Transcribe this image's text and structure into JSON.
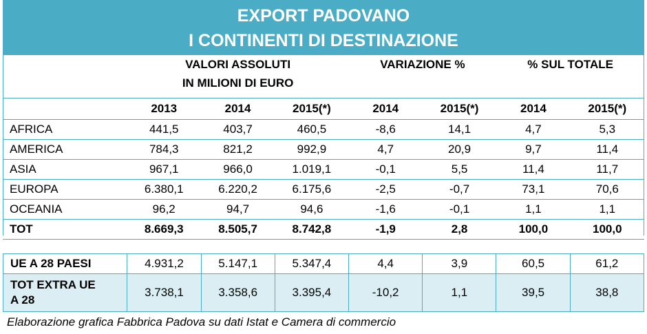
{
  "title": {
    "line1": "EXPORT PADOVANO",
    "line2": "I CONTINENTI DI DESTINAZIONE"
  },
  "groups": {
    "valori_line1": "VALORI ASSOLUTI",
    "valori_line2": "IN MILIONI DI EURO",
    "variazione": "VARIAZIONE %",
    "percentuale": "% SUL TOTALE"
  },
  "columns": [
    "2013",
    "2014",
    "2015(*)",
    "2014",
    "2015(*)",
    "2014",
    "2015(*)"
  ],
  "rows": [
    {
      "label": "AFRICA",
      "values": [
        "441,5",
        "403,7",
        "460,5",
        "-8,6",
        "14,1",
        "4,7",
        "5,3"
      ]
    },
    {
      "label": "AMERICA",
      "values": [
        "784,3",
        "821,2",
        "992,9",
        "4,7",
        "20,9",
        "9,7",
        "11,4"
      ]
    },
    {
      "label": "ASIA",
      "values": [
        "967,1",
        "966,0",
        "1.019,1",
        "-0,1",
        "5,5",
        "11,4",
        "11,7"
      ]
    },
    {
      "label": "EUROPA",
      "values": [
        "6.380,1",
        "6.220,2",
        "6.175,6",
        "-2,5",
        "-0,7",
        "73,1",
        "70,6"
      ]
    },
    {
      "label": "OCEANIA",
      "values": [
        "96,2",
        "94,7",
        "94,6",
        "-1,6",
        "-0,1",
        "1,1",
        "1,1"
      ]
    },
    {
      "label": "TOT",
      "values": [
        "8.669,3",
        "8.505,7",
        "8.742,8",
        "-1,9",
        "2,8",
        "100,0",
        "100,0"
      ]
    }
  ],
  "bottom_rows": [
    {
      "label": "UE A 28 PAESI",
      "values": [
        "4.931,2",
        "5.147,1",
        "5.347,4",
        "4,4",
        "3,9",
        "60,5",
        "61,2"
      ]
    },
    {
      "label_line1": "TOT EXTRA UE",
      "label_line2": "A 28",
      "values": [
        "3.738,1",
        "3.358,6",
        "3.395,4",
        "-10,2",
        "1,1",
        "39,5",
        "38,8"
      ]
    }
  ],
  "footer": "Elaborazione grafica Fabbrica Padova su dati Istat e Camera di commercio",
  "colors": {
    "accent": "#4bacc6",
    "highlight": "#daeef3"
  }
}
